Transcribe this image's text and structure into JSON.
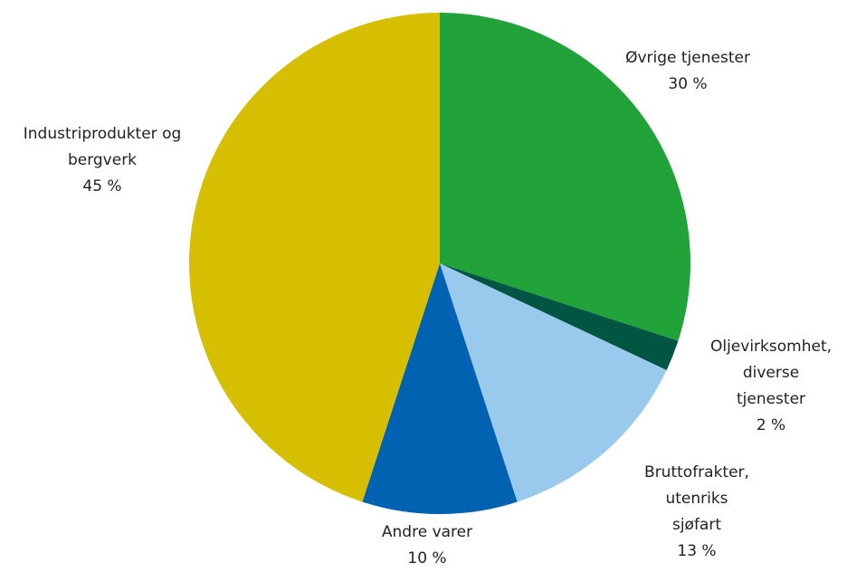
{
  "chart_data": {
    "type": "pie",
    "categories": [
      "Øvrige tjenester",
      "Oljevirksomhet,\ndiverse tjenester",
      "Bruttofrakter, utenriks\nsjøfart",
      "Andre varer",
      "Industriprodukter og\nbergverk"
    ],
    "values": [
      30,
      2,
      13,
      10,
      45
    ],
    "value_labels": [
      "30 %",
      "2 %",
      "13 %",
      "10 %",
      "45 %"
    ],
    "colors": [
      "#21a339",
      "#005643",
      "#9ac9ee",
      "#0062b0",
      "#d5bf00"
    ]
  }
}
